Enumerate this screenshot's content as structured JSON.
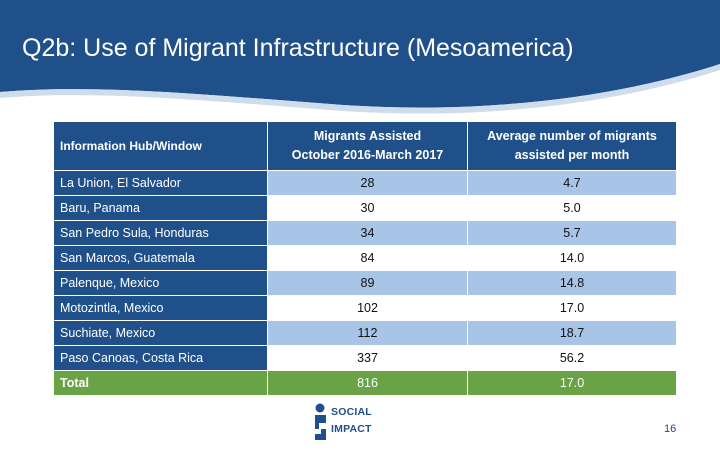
{
  "slide": {
    "title": "Q2b: Use of Migrant Infrastructure (Mesoamerica)",
    "page_number": "16"
  },
  "colors": {
    "header_blue": "#20508a",
    "light_blue_row": "#a8c4e6",
    "total_green": "#6aa346"
  },
  "table": {
    "headers": {
      "hub": "Information Hub/Window",
      "assisted_line1": "Migrants Assisted",
      "assisted_line2": "October 2016-March 2017",
      "average_line1": "Average number of migrants",
      "average_line2": "assisted per month"
    },
    "rows": [
      {
        "hub": "La Union, El Salvador",
        "assisted": "28",
        "average": "4.7"
      },
      {
        "hub": "Baru, Panama",
        "assisted": "30",
        "average": "5.0"
      },
      {
        "hub": "San Pedro Sula, Honduras",
        "assisted": "34",
        "average": "5.7"
      },
      {
        "hub": "San Marcos, Guatemala",
        "assisted": "84",
        "average": "14.0"
      },
      {
        "hub": "Palenque, Mexico",
        "assisted": "89",
        "average": "14.8"
      },
      {
        "hub": "Motozintla, Mexico",
        "assisted": "102",
        "average": "17.0"
      },
      {
        "hub": "Suchiate, Mexico",
        "assisted": "112",
        "average": "18.7"
      },
      {
        "hub": "Paso Canoas, Costa Rica",
        "assisted": "337",
        "average": "56.2"
      }
    ],
    "total": {
      "hub": "Total",
      "assisted": "816",
      "average": "17.0"
    }
  },
  "logo": {
    "line1": "SOCIAL",
    "line2": "IMPACT",
    "icon": "social-impact-logo-icon"
  }
}
